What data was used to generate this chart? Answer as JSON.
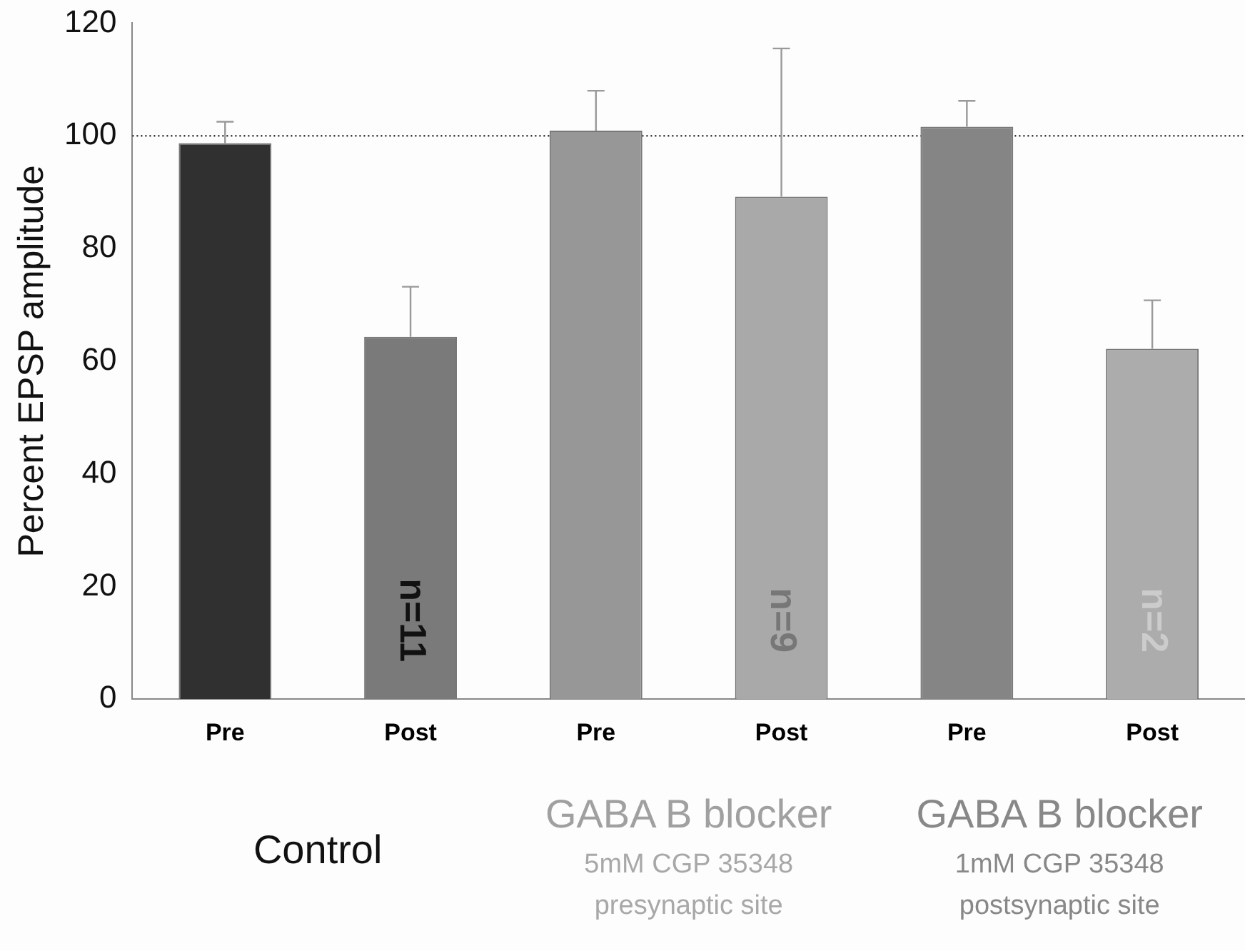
{
  "chart_data": {
    "type": "bar",
    "ylabel": "Percent EPSP amplitude",
    "categories": [
      "Pre",
      "Post",
      "Pre",
      "Post",
      "Pre",
      "Post"
    ],
    "values": [
      98.7,
      64.3,
      100.9,
      89.2,
      101.6,
      62.2
    ],
    "colors": [
      "#303030",
      "#7a7a7a",
      "#979797",
      "#a9a9a9",
      "#858585",
      "#acacac"
    ],
    "errors": [
      [
        98.7,
        102.5
      ],
      [
        64.3,
        73.2
      ],
      [
        100.9,
        108
      ],
      [
        89.2,
        115.5
      ],
      [
        101.6,
        106.2
      ],
      [
        62.2,
        70.8
      ]
    ],
    "ylim": [
      0,
      120
    ],
    "yticks": [
      0,
      20,
      40,
      60,
      80,
      100,
      120
    ],
    "grid": false,
    "legend": false,
    "ref_lines": [
      {
        "axis": "y",
        "value": 100,
        "color": "#333333",
        "line_style": "dotted"
      }
    ],
    "annotations": [
      "n=11",
      "n=9",
      "n=2",
      "Control",
      "GABA B blocker",
      "5mM CGP 35348",
      "presynaptic site",
      "GABA B blocker",
      "1mM CGP 35348",
      "postsynaptic site"
    ]
  }
}
